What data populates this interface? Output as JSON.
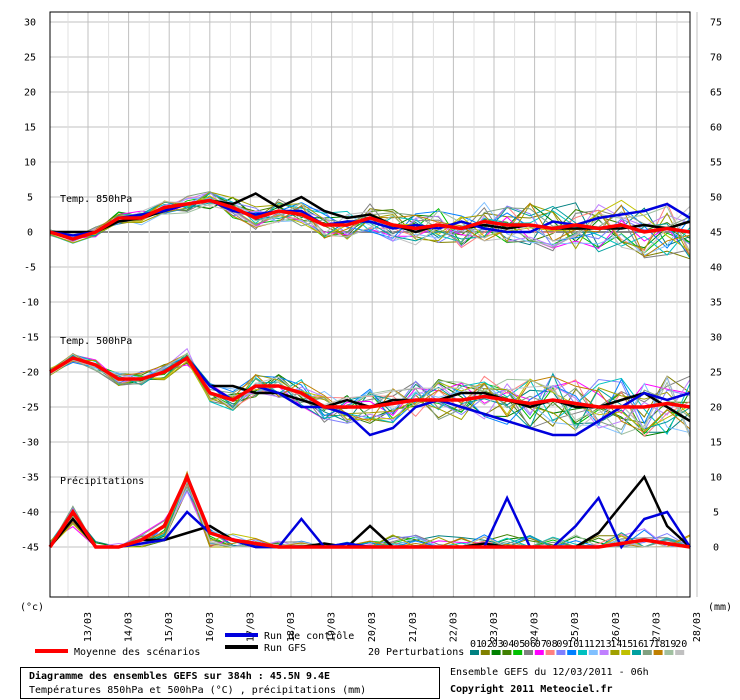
{
  "chart_data": {
    "type": "line",
    "left_axis": {
      "ticks": [
        30,
        25,
        20,
        15,
        10,
        5,
        0,
        -5,
        -10,
        -15,
        -20,
        -25,
        -30,
        -35,
        -40,
        -45
      ],
      "unit_label": "(°c)"
    },
    "right_axis": {
      "ticks": [
        75,
        70,
        65,
        60,
        55,
        50,
        45,
        40,
        35,
        30,
        25,
        20,
        15,
        10,
        5,
        0
      ],
      "unit_label": "(mm)"
    },
    "dates": [
      "13/03",
      "14/03",
      "15/03",
      "16/03",
      "17/03",
      "18/03",
      "19/03",
      "20/03",
      "21/03",
      "22/03",
      "23/03",
      "24/03",
      "25/03",
      "26/03",
      "27/03",
      "28/03"
    ],
    "panel_labels": [
      "Temp. 850hPa",
      "Temp. 500hPa",
      "Précipitations"
    ],
    "series_850_mean": [
      0,
      -1,
      0,
      2,
      2,
      3.5,
      4,
      4.5,
      3.5,
      2,
      3,
      2.5,
      1,
      1,
      2,
      1,
      0.5,
      1,
      0.5,
      1.5,
      1,
      1,
      0.5,
      1,
      0.5,
      1,
      0,
      0.5,
      0
    ],
    "series_850_gfs": [
      0,
      0,
      0,
      1.5,
      2,
      3,
      4,
      4.5,
      4,
      5.5,
      3.5,
      5,
      3,
      2,
      2.5,
      1,
      0,
      1,
      0.5,
      1,
      0.5,
      1,
      0.5,
      0.5,
      0.5,
      0.5,
      1,
      0.5,
      1.5
    ],
    "series_850_control": [
      0,
      -0.5,
      0,
      2,
      2.5,
      3,
      4,
      4.5,
      3,
      2.5,
      3,
      3,
      1,
      1.5,
      1.5,
      0.5,
      1,
      0.5,
      1.5,
      0.5,
      0,
      0,
      1.5,
      1,
      2,
      2.5,
      3,
      4,
      2
    ],
    "series_500_mean": [
      -20,
      -18,
      -19,
      -21,
      -21,
      -20,
      -18,
      -23,
      -24,
      -22,
      -22,
      -23,
      -25,
      -25,
      -25,
      -24.5,
      -24,
      -24,
      -24,
      -23.5,
      -24,
      -24.5,
      -24,
      -24.5,
      -25,
      -25,
      -25,
      -24.5,
      -25
    ],
    "series_500_gfs": [
      -20,
      -18,
      -19,
      -21,
      -21,
      -20,
      -18,
      -22,
      -22,
      -23,
      -23,
      -24,
      -25,
      -24,
      -25,
      -24,
      -24,
      -24,
      -23,
      -23,
      -24,
      -25,
      -24,
      -25,
      -25,
      -24,
      -23,
      -25,
      -27
    ],
    "series_500_control": [
      -20,
      -18,
      -19,
      -21,
      -21,
      -20,
      -18,
      -22,
      -24,
      -22,
      -23,
      -25,
      -25,
      -26,
      -29,
      -28,
      -25,
      -24,
      -25,
      -26,
      -27,
      -28,
      -29,
      -29,
      -27,
      -25,
      -23,
      -24,
      -23
    ],
    "series_precip_mean_mm": [
      0,
      5,
      0,
      0,
      1,
      3,
      10,
      2,
      1,
      0.5,
      0,
      0,
      0,
      0,
      0,
      0,
      0,
      0,
      0,
      0,
      0,
      0,
      0,
      0,
      0,
      0.5,
      1,
      0.5,
      0
    ],
    "series_precip_gfs_mm": [
      0,
      4,
      0,
      0,
      1,
      1,
      2,
      3,
      1,
      0,
      0,
      0,
      0.5,
      0,
      3,
      0,
      0,
      0,
      0,
      0.5,
      0,
      0,
      0,
      0,
      2,
      6,
      10,
      3,
      0
    ],
    "series_precip_control_mm": [
      0,
      5,
      0,
      0,
      0.5,
      1,
      5,
      2,
      1,
      0,
      0,
      4,
      0,
      0.5,
      0,
      0,
      0,
      0,
      0,
      0,
      7,
      0,
      0,
      3,
      7,
      0,
      4,
      5,
      0
    ],
    "colors": {
      "mean": "#ff0000",
      "control": "#0000dd",
      "gfs": "#000000",
      "grid": "#c0c0c0",
      "zero_line": "#888888"
    },
    "perturbation_colors": [
      "#008080",
      "#808000",
      "#008000",
      "#408000",
      "#00c000",
      "#808080",
      "#ff00ff",
      "#ff8080",
      "#8080ff",
      "#0080ff",
      "#00c0c0",
      "#80c0ff",
      "#c080ff",
      "#a0a000",
      "#c0c000",
      "#00a0a0",
      "#80a080",
      "#c08000",
      "#a0c0a0",
      "#c0c0c0"
    ],
    "perturbation_numbers": [
      "01",
      "02",
      "03",
      "04",
      "05",
      "06",
      "07",
      "08",
      "09",
      "10",
      "11",
      "12",
      "13",
      "14",
      "15",
      "16",
      "17",
      "18",
      "19",
      "20"
    ]
  },
  "legend": {
    "control": "Run de contrôle",
    "gfs": "Run GFS",
    "mean": "Moyenne des scénarios",
    "perturbations": "20 Perturbations"
  },
  "footer": {
    "title": "Diagramme des ensembles GEFS sur 384h : 45.5N 9.4E",
    "subtitle": "Températures 850hPa et 500hPa (°C) , précipitations (mm)",
    "run_info": "Ensemble GEFS du 12/03/2011 - 06h",
    "copyright": "Copyright 2011 Meteociel.fr"
  }
}
